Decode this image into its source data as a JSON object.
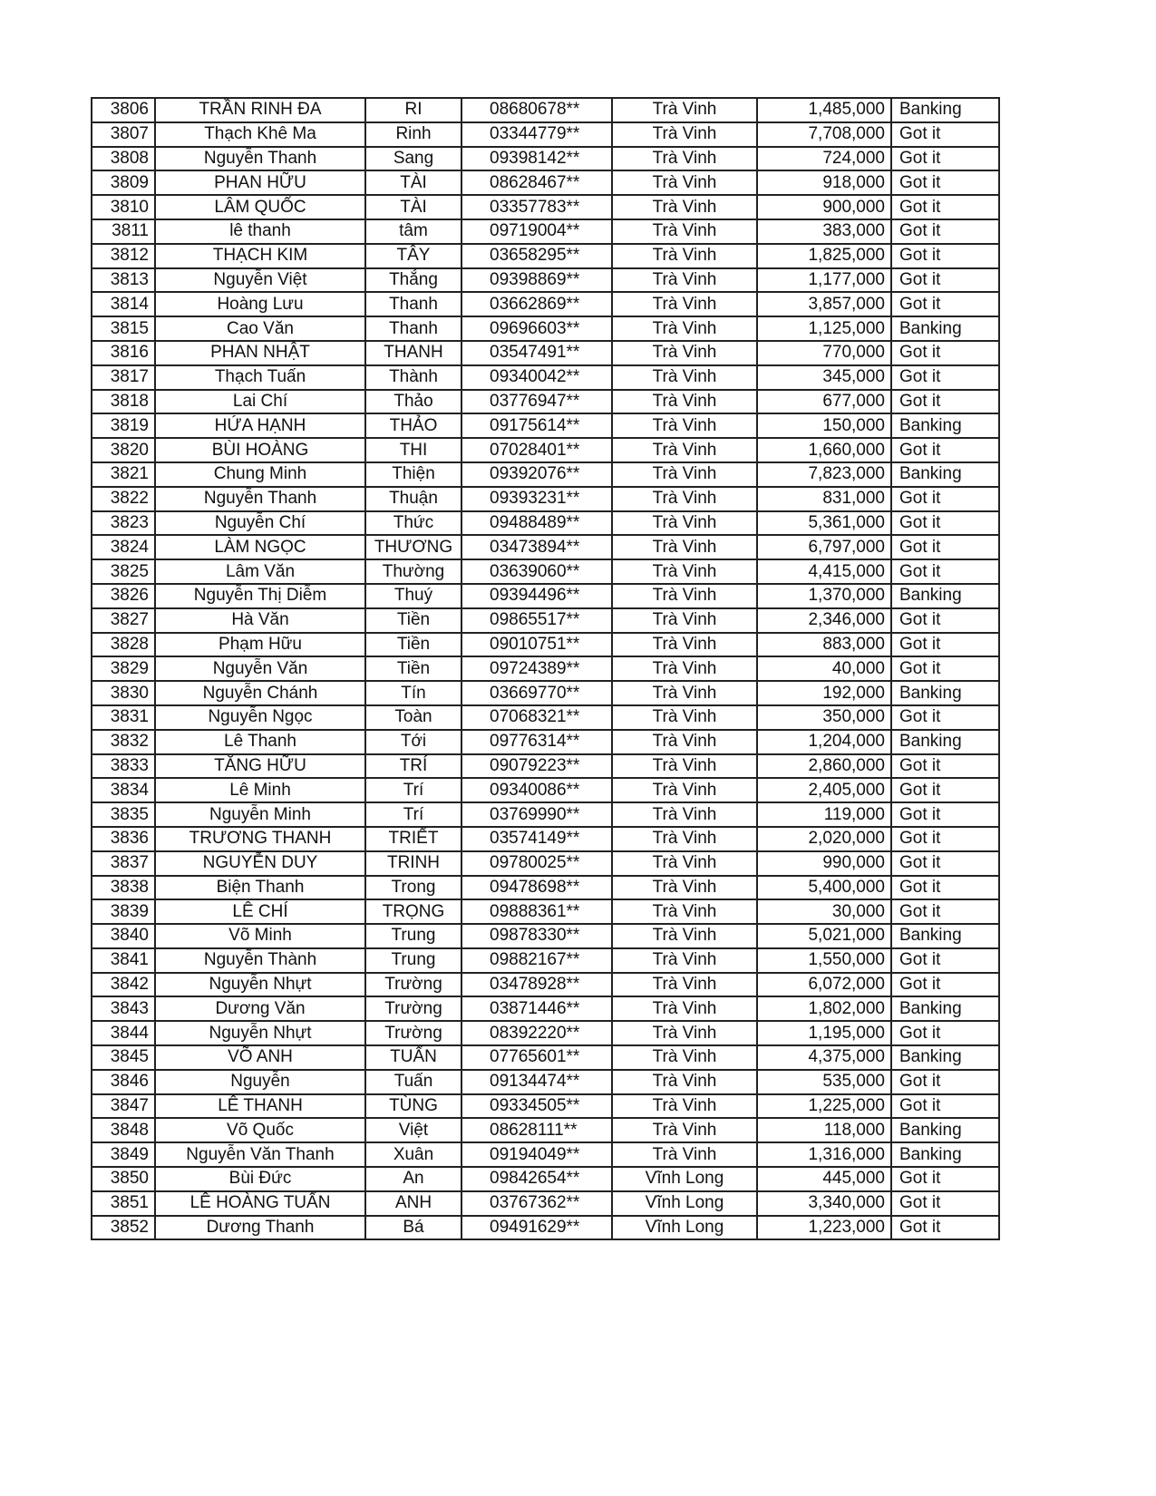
{
  "table": {
    "rows": [
      [
        "3806",
        "TRẦN RINH ĐA",
        "RI",
        "08680678**",
        "Trà Vinh",
        "1,485,000",
        "Banking"
      ],
      [
        "3807",
        "Thạch Khê Ma",
        "Rinh",
        "03344779**",
        "Trà Vinh",
        "7,708,000",
        "Got it"
      ],
      [
        "3808",
        "Nguyễn Thanh",
        "Sang",
        "09398142**",
        "Trà Vinh",
        "724,000",
        "Got it"
      ],
      [
        "3809",
        "PHAN HỮU",
        "TÀI",
        "08628467**",
        "Trà Vinh",
        "918,000",
        "Got it"
      ],
      [
        "3810",
        "LÂM QUỐC",
        "TÀI",
        "03357783**",
        "Trà Vinh",
        "900,000",
        "Got it"
      ],
      [
        "3811",
        "lê thanh",
        "tâm",
        "09719004**",
        "Trà Vinh",
        "383,000",
        "Got it"
      ],
      [
        "3812",
        "THẠCH KIM",
        "TÂY",
        "03658295**",
        "Trà Vinh",
        "1,825,000",
        "Got it"
      ],
      [
        "3813",
        "Nguyễn Việt",
        "Thắng",
        "09398869**",
        "Trà Vinh",
        "1,177,000",
        "Got it"
      ],
      [
        "3814",
        "Hoàng Lưu",
        "Thanh",
        "03662869**",
        "Trà Vinh",
        "3,857,000",
        "Got it"
      ],
      [
        "3815",
        "Cao Văn",
        "Thanh",
        "09696603**",
        "Trà Vinh",
        "1,125,000",
        "Banking"
      ],
      [
        "3816",
        "PHAN NHẬT",
        "THANH",
        "03547491**",
        "Trà Vinh",
        "770,000",
        "Got it"
      ],
      [
        "3817",
        "Thạch Tuấn",
        "Thành",
        "09340042**",
        "Trà Vinh",
        "345,000",
        "Got it"
      ],
      [
        "3818",
        "Lai Chí",
        "Thảo",
        "03776947**",
        "Trà Vinh",
        "677,000",
        "Got it"
      ],
      [
        "3819",
        "HỨA HẠNH",
        "THẢO",
        "09175614**",
        "Trà Vinh",
        "150,000",
        "Banking"
      ],
      [
        "3820",
        "BÙI HOÀNG",
        "THI",
        "07028401**",
        "Trà Vinh",
        "1,660,000",
        "Got it"
      ],
      [
        "3821",
        "Chung Minh",
        "Thiện",
        "09392076**",
        "Trà Vinh",
        "7,823,000",
        "Banking"
      ],
      [
        "3822",
        "Nguyễn Thanh",
        "Thuận",
        "09393231**",
        "Trà Vinh",
        "831,000",
        "Got it"
      ],
      [
        "3823",
        "Nguyễn Chí",
        "Thức",
        "09488489**",
        "Trà Vinh",
        "5,361,000",
        "Got it"
      ],
      [
        "3824",
        "LÀM NGỌC",
        "THƯƠNG",
        "03473894**",
        "Trà Vinh",
        "6,797,000",
        "Got it"
      ],
      [
        "3825",
        "Lâm Văn",
        "Thường",
        "03639060**",
        "Trà Vinh",
        "4,415,000",
        "Got it"
      ],
      [
        "3826",
        "Nguyễn Thị Diễm",
        "Thuý",
        "09394496**",
        "Trà Vinh",
        "1,370,000",
        "Banking"
      ],
      [
        "3827",
        "Hà Văn",
        "Tiền",
        "09865517**",
        "Trà Vinh",
        "2,346,000",
        "Got it"
      ],
      [
        "3828",
        "Phạm Hữu",
        "Tiền",
        "09010751**",
        "Trà Vinh",
        "883,000",
        "Got it"
      ],
      [
        "3829",
        "Nguyễn Văn",
        "Tiền",
        "09724389**",
        "Trà Vinh",
        "40,000",
        "Got it"
      ],
      [
        "3830",
        "Nguyễn Chánh",
        "Tín",
        "03669770**",
        "Trà Vinh",
        "192,000",
        "Banking"
      ],
      [
        "3831",
        "Nguyễn Ngọc",
        "Toàn",
        "07068321**",
        "Trà Vinh",
        "350,000",
        "Got it"
      ],
      [
        "3832",
        "Lê Thanh",
        "Tới",
        "09776314**",
        "Trà Vinh",
        "1,204,000",
        "Banking"
      ],
      [
        "3833",
        "TĂNG HỮU",
        "TRÍ",
        "09079223**",
        "Trà Vinh",
        "2,860,000",
        "Got it"
      ],
      [
        "3834",
        "Lê Minh",
        "Trí",
        "09340086**",
        "Trà Vinh",
        "2,405,000",
        "Got it"
      ],
      [
        "3835",
        "Nguyễn Minh",
        "Trí",
        "03769990**",
        "Trà Vinh",
        "119,000",
        "Got it"
      ],
      [
        "3836",
        "TRƯƠNG THANH",
        "TRIẾT",
        "03574149**",
        "Trà Vinh",
        "2,020,000",
        "Got it"
      ],
      [
        "3837",
        "NGUYỄN DUY",
        "TRINH",
        "09780025**",
        "Trà Vinh",
        "990,000",
        "Got it"
      ],
      [
        "3838",
        "Biện Thanh",
        "Trong",
        "09478698**",
        "Trà Vinh",
        "5,400,000",
        "Got it"
      ],
      [
        "3839",
        "LÊ CHÍ",
        "TRỌNG",
        "09888361**",
        "Trà Vinh",
        "30,000",
        "Got it"
      ],
      [
        "3840",
        "Võ Minh",
        "Trung",
        "09878330**",
        "Trà Vinh",
        "5,021,000",
        "Banking"
      ],
      [
        "3841",
        "Nguyễn Thành",
        "Trung",
        "09882167**",
        "Trà Vinh",
        "1,550,000",
        "Got it"
      ],
      [
        "3842",
        "Nguyễn Nhựt",
        "Trường",
        "03478928**",
        "Trà Vinh",
        "6,072,000",
        "Got it"
      ],
      [
        "3843",
        "Dương Văn",
        "Trường",
        "03871446**",
        "Trà Vinh",
        "1,802,000",
        "Banking"
      ],
      [
        "3844",
        "Nguyễn Nhựt",
        "Trường",
        "08392220**",
        "Trà Vinh",
        "1,195,000",
        "Got it"
      ],
      [
        "3845",
        "VÕ ANH",
        "TUẤN",
        "07765601**",
        "Trà Vinh",
        "4,375,000",
        "Banking"
      ],
      [
        "3846",
        "Nguyễn",
        "Tuấn",
        "09134474**",
        "Trà Vinh",
        "535,000",
        "Got it"
      ],
      [
        "3847",
        "LÊ THANH",
        "TÙNG",
        "09334505**",
        "Trà Vinh",
        "1,225,000",
        "Got it"
      ],
      [
        "3848",
        "Võ Quốc",
        "Việt",
        "08628111**",
        "Trà Vinh",
        "118,000",
        "Banking"
      ],
      [
        "3849",
        "Nguyễn Văn Thanh",
        "Xuân",
        "09194049**",
        "Trà Vinh",
        "1,316,000",
        "Banking"
      ],
      [
        "3850",
        "Bùi Đức",
        "An",
        "09842654**",
        "Vĩnh Long",
        "445,000",
        "Got it"
      ],
      [
        "3851",
        "LÊ HOÀNG TUẤN",
        "ANH",
        "03767362**",
        "Vĩnh Long",
        "3,340,000",
        "Got it"
      ],
      [
        "3852",
        "Dương Thanh",
        "Bá",
        "09491629**",
        "Vĩnh Long",
        "1,223,000",
        "Got it"
      ]
    ]
  }
}
